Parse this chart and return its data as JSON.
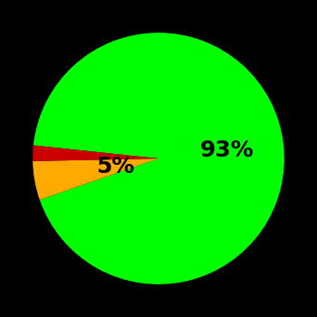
{
  "slices": [
    93,
    5,
    2
  ],
  "colors": [
    "#00ff00",
    "#ffaa00",
    "#cc0000"
  ],
  "labels": [
    "93%",
    "5%",
    ""
  ],
  "background_color": "#000000",
  "startangle": 174,
  "label_fontsize": 18,
  "label_fontweight": "bold",
  "figsize": [
    3.5,
    3.5
  ],
  "dpi": 100
}
